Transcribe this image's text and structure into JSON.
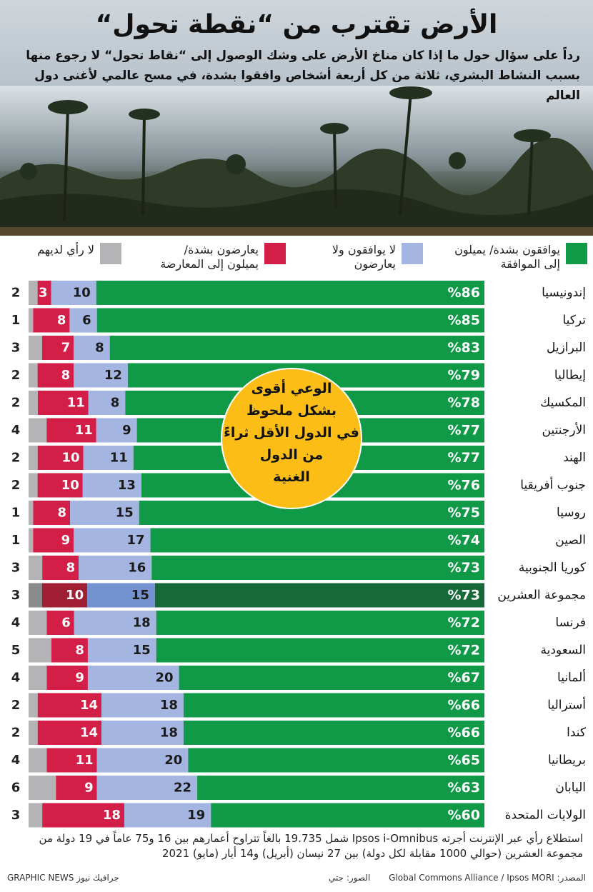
{
  "header": {
    "title": "الأرض تقترب من “نقطة تحول“",
    "subtitle": "رداً على سؤال حول ما إذا كان مناخ الأرض على وشك الوصول إلى “نقاط تحول“ لا رجوع منها بسبب النشاط البشري، ثلاثة من كل أربعة أشخاص وافقوا بشدة، في مسح عالمي لأغنى دول العالم"
  },
  "legend": [
    {
      "label": "يوافقون بشدة/ يميلون إلى الموافقة",
      "color": "#109a48"
    },
    {
      "label": "لا يوافقون ولا يعارضون",
      "color": "#a3b5e0"
    },
    {
      "label": "يعارضون بشدة/ يميلون إلى المعارضة",
      "color": "#d31f47"
    },
    {
      "label": "لا رأي لديهم",
      "color": "#b4b4b6"
    }
  ],
  "callout": {
    "text": "الوعي أقوى بشكل ملحوظ في الدول الأقل ثراءً من الدول الغنية",
    "color": "#fbbd16"
  },
  "chart_data": {
    "type": "bar",
    "orientation": "horizontal-stacked",
    "unit": "%",
    "series_order": [
      "agree",
      "neutral",
      "disagree",
      "no_opinion"
    ],
    "rows": [
      {
        "country": "إندونيسيا",
        "agree": 86,
        "neutral": 10,
        "disagree": 3,
        "no_opinion": 2
      },
      {
        "country": "تركيا",
        "agree": 85,
        "neutral": 6,
        "disagree": 8,
        "no_opinion": 1
      },
      {
        "country": "البرازيل",
        "agree": 83,
        "neutral": 8,
        "disagree": 7,
        "no_opinion": 3
      },
      {
        "country": "إيطاليا",
        "agree": 79,
        "neutral": 12,
        "disagree": 8,
        "no_opinion": 2
      },
      {
        "country": "المكسيك",
        "agree": 78,
        "neutral": 8,
        "disagree": 11,
        "no_opinion": 2
      },
      {
        "country": "الأرجنتين",
        "agree": 77,
        "neutral": 9,
        "disagree": 11,
        "no_opinion": 4
      },
      {
        "country": "الهند",
        "agree": 77,
        "neutral": 11,
        "disagree": 10,
        "no_opinion": 2
      },
      {
        "country": "جنوب أفريقيا",
        "agree": 76,
        "neutral": 13,
        "disagree": 10,
        "no_opinion": 2
      },
      {
        "country": "روسيا",
        "agree": 75,
        "neutral": 15,
        "disagree": 8,
        "no_opinion": 1
      },
      {
        "country": "الصين",
        "agree": 74,
        "neutral": 17,
        "disagree": 9,
        "no_opinion": 1
      },
      {
        "country": "كوريا الجنوبية",
        "agree": 73,
        "neutral": 16,
        "disagree": 8,
        "no_opinion": 3
      },
      {
        "country": "مجموعة العشرين",
        "agree": 73,
        "neutral": 15,
        "disagree": 10,
        "no_opinion": 3,
        "highlight": true
      },
      {
        "country": "فرنسا",
        "agree": 72,
        "neutral": 18,
        "disagree": 6,
        "no_opinion": 4
      },
      {
        "country": "السعودية",
        "agree": 72,
        "neutral": 15,
        "disagree": 8,
        "no_opinion": 5
      },
      {
        "country": "ألمانيا",
        "agree": 67,
        "neutral": 20,
        "disagree": 9,
        "no_opinion": 4
      },
      {
        "country": "أستراليا",
        "agree": 66,
        "neutral": 18,
        "disagree": 14,
        "no_opinion": 2
      },
      {
        "country": "كندا",
        "agree": 66,
        "neutral": 18,
        "disagree": 14,
        "no_opinion": 2
      },
      {
        "country": "بريطانيا",
        "agree": 65,
        "neutral": 20,
        "disagree": 11,
        "no_opinion": 4
      },
      {
        "country": "اليابان",
        "agree": 63,
        "neutral": 22,
        "disagree": 9,
        "no_opinion": 6
      },
      {
        "country": "الولايات المتحدة",
        "agree": 60,
        "neutral": 19,
        "disagree": 18,
        "no_opinion": 3
      }
    ],
    "colors": {
      "agree": "#109a48",
      "neutral": "#a3b5e0",
      "disagree": "#d31f47",
      "no_opinion": "#b4b4b6",
      "agree_highlight": "#166a37",
      "neutral_highlight": "#7492d0",
      "disagree_highlight": "#a11f33",
      "no_opinion_highlight": "#8a8b8d"
    }
  },
  "footer": {
    "note": "استطلاع رأي عبر الإنترنت أجرته Ipsos i-Omnibus شمل 19.735 بالغاً تتراوح أعمارهم بين 16 و75 عاماً في 19 دولة من مجموعة العشرين (حوالي 1000 مقابلة لكل دولة) بين 27 نيسان (أبريل) و14 أيار (مايو) 2021",
    "source": "المصدر: Global Commons Alliance / Ipsos MORI",
    "photo": "الصور: جتي",
    "brand": "GRAPHIC NEWS جرافيك نيوز"
  }
}
